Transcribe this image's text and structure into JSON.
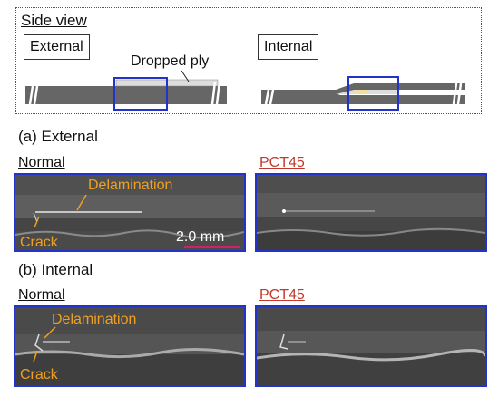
{
  "side_view": {
    "title": "Side view",
    "external_label": "External",
    "internal_label": "Internal",
    "dropped_ply_label": "Dropped ply"
  },
  "sections": [
    {
      "heading": "(a) External",
      "normal_label": "Normal",
      "pct_label": "PCT45",
      "annotations": {
        "delamination": "Delamination",
        "crack": "Crack",
        "scale": "2.0 mm"
      }
    },
    {
      "heading": "(b) Internal",
      "normal_label": "Normal",
      "pct_label": "PCT45",
      "annotations": {
        "delamination": "Delamination",
        "crack": "Crack"
      }
    }
  ],
  "colors": {
    "highlight_box": "#2233cc",
    "annotation": "#f0a020",
    "pct_label": "#c0392b",
    "scale_bar": "#d0206a",
    "laminate": "#666666",
    "ply": "#dddddd"
  }
}
